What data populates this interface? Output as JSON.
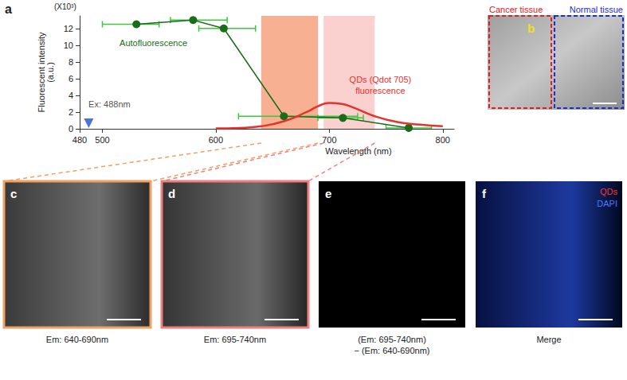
{
  "chart_data": {
    "type": "line",
    "panel_label": "a",
    "y_scale_note": "(X10³)",
    "x_label": "Wavelength (nm)",
    "y_label": "Fluorescent intensity\n(a.u.)",
    "xlim": [
      480,
      810
    ],
    "xticks": [
      480,
      500,
      600,
      700,
      800
    ],
    "ylim": [
      0,
      13.5
    ],
    "yticks": [
      0,
      2,
      4,
      6,
      8,
      10,
      12
    ],
    "grid": false,
    "series": [
      {
        "name": "Autofluorescence",
        "type": "line",
        "color": "#1a6b1a",
        "marker": "circle",
        "x": [
          530,
          580,
          607,
          660,
          712,
          770
        ],
        "values": [
          12.5,
          13.0,
          12.0,
          1.5,
          1.3,
          0.1
        ],
        "x_error": [
          [
            500,
            550
          ],
          [
            560,
            610
          ],
          [
            585,
            635
          ],
          [
            620,
            725
          ],
          [
            690,
            730
          ],
          [
            750,
            790
          ]
        ],
        "error_color": "#3cc83c",
        "label_at": [
          545,
          10.3
        ]
      },
      {
        "name": "QDs (Qdot 705)\nfluorescence",
        "type": "line",
        "color": "#e8312a",
        "marker": "none",
        "x": [
          600,
          620,
          640,
          660,
          680,
          690,
          700,
          710,
          720,
          740,
          760,
          780,
          800
        ],
        "values": [
          0.05,
          0.1,
          0.3,
          0.9,
          2.0,
          2.7,
          3.1,
          3.0,
          2.6,
          1.5,
          0.8,
          0.5,
          0.3
        ],
        "label_at": [
          745,
          5.2
        ]
      }
    ],
    "bands": [
      {
        "xlim": [
          640,
          690
        ],
        "color": "#f6a886"
      },
      {
        "xlim": [
          695,
          740
        ],
        "color": "#fbcccb"
      }
    ],
    "excitation": {
      "x": 488,
      "y": 0,
      "label": "Ex: 488nm",
      "color": "#1f4fd6"
    }
  },
  "panel_b": {
    "label": "b",
    "label_color": "#f0e020",
    "regions": [
      {
        "text": "Cancer tissue",
        "color": "#e02020"
      },
      {
        "text": "Normal tissue",
        "color": "#1a2fd0"
      }
    ]
  },
  "panels": [
    {
      "label": "c",
      "caption": "Em: 640-690nm",
      "border": "#f0a060",
      "band": 0
    },
    {
      "label": "d",
      "caption": "Em: 695-740nm",
      "border": "#ee7f7f",
      "band": 1
    },
    {
      "label": "e",
      "caption": "(Em: 695-740nm)\n− (Em: 640-690nm)"
    },
    {
      "label": "f",
      "caption": "Merge",
      "legend": [
        {
          "text": "QDs",
          "color": "#ff3030"
        },
        {
          "text": "DAPI",
          "color": "#4a7cff"
        }
      ]
    }
  ]
}
